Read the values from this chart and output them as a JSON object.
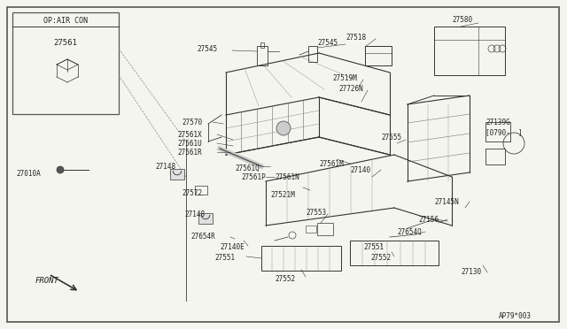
{
  "bg_color": "#f5f5f0",
  "inset_label": "OP:AIR CON",
  "inset_part": "27561",
  "bottom_code": "AP79*003",
  "lc": "#222222",
  "fs": 5.5
}
